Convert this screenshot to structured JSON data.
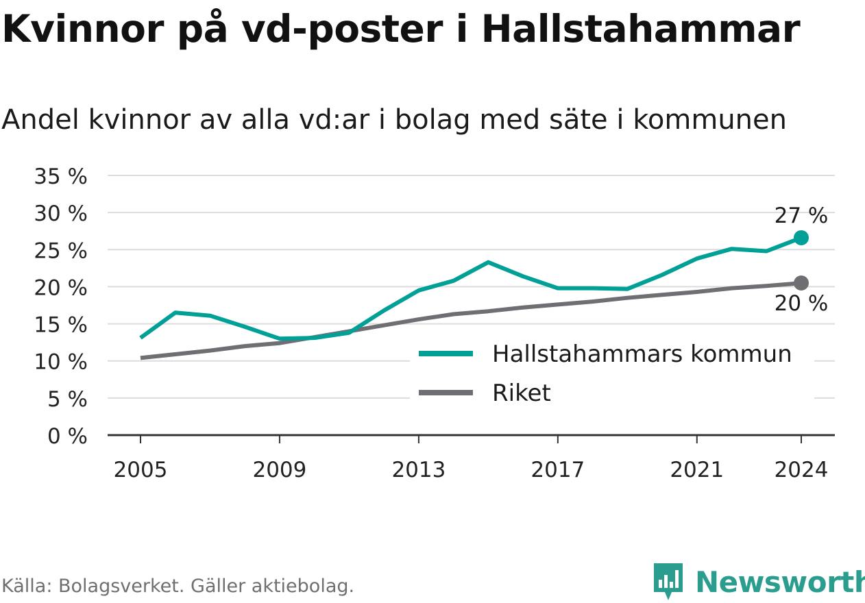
{
  "title": "Kvinnor på vd-poster i Hallstahammar",
  "subtitle": "Andel kvinnor av alla vd:ar i bolag med säte i kommunen",
  "source": "Källa: Bolagsverket. Gäller aktiebolag.",
  "brand": {
    "name": "Newsworthy",
    "icon": "bar-chart-speech-bubble-icon",
    "color": "#2a9d8f"
  },
  "chart_data": {
    "type": "line",
    "xlabel": "",
    "ylabel": "",
    "x": [
      2005,
      2006,
      2007,
      2008,
      2009,
      2010,
      2011,
      2012,
      2013,
      2014,
      2015,
      2016,
      2017,
      2018,
      2019,
      2020,
      2021,
      2022,
      2023,
      2024
    ],
    "xticks": [
      2005,
      2009,
      2013,
      2017,
      2021,
      2024
    ],
    "xlim": [
      2004,
      2025
    ],
    "ylim": [
      0,
      35
    ],
    "yticks": [
      0,
      5,
      10,
      15,
      20,
      25,
      30,
      35
    ],
    "ytick_labels": [
      "0 %",
      "5 %",
      "10 %",
      "15 %",
      "20 %",
      "25 %",
      "30 %",
      "35 %"
    ],
    "grid": true,
    "legend_position": "bottom-right",
    "series": [
      {
        "name": "Hallstahammars kommun",
        "color": "#00a096",
        "values": [
          13.1,
          16.5,
          16.1,
          14.6,
          13.0,
          13.1,
          13.8,
          16.8,
          19.5,
          20.8,
          23.3,
          21.4,
          19.8,
          19.8,
          19.7,
          21.6,
          23.8,
          25.1,
          24.8,
          26.6
        ],
        "end_label": "27 %"
      },
      {
        "name": "Riket",
        "color": "#6f6e73",
        "values": [
          10.4,
          10.9,
          11.4,
          12.0,
          12.4,
          13.2,
          14.0,
          14.8,
          15.6,
          16.3,
          16.7,
          17.2,
          17.6,
          18.0,
          18.5,
          18.9,
          19.3,
          19.8,
          20.1,
          20.5
        ],
        "end_label": "20 %"
      }
    ]
  }
}
